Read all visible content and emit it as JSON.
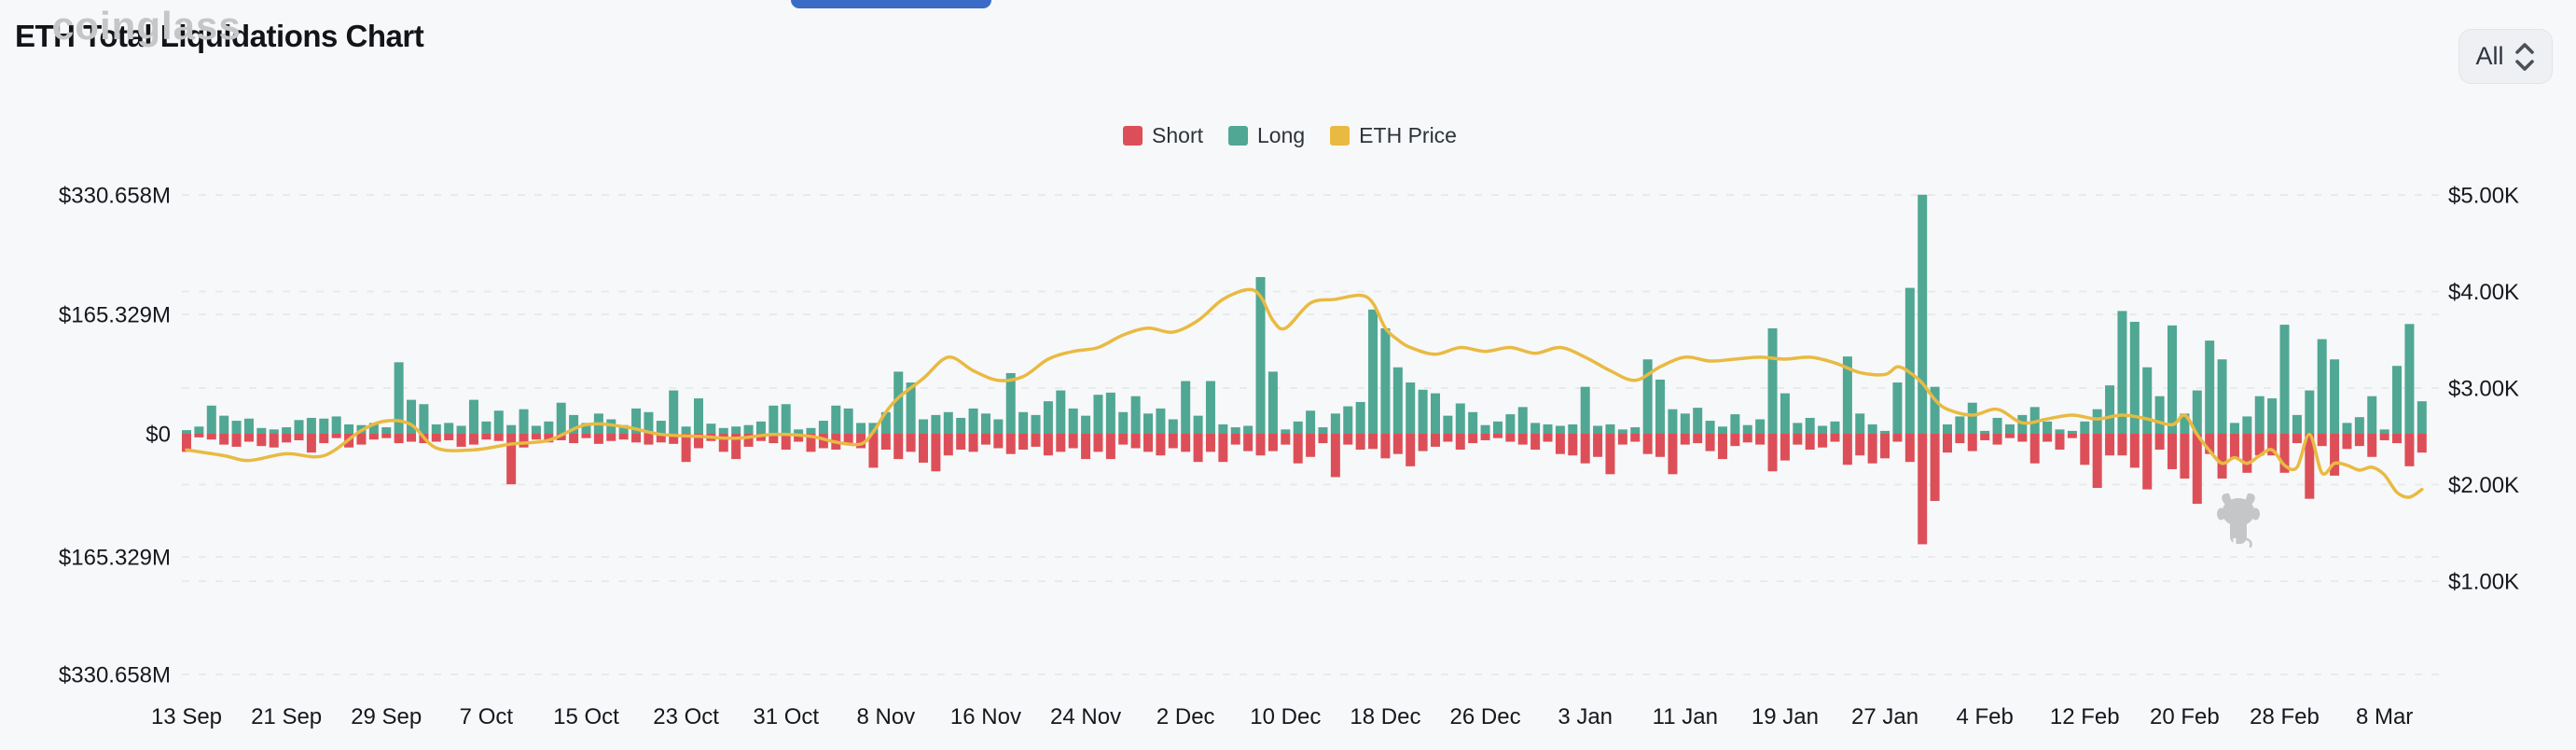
{
  "header": {
    "title": "ETH Total Liquidations Chart",
    "range_selector": {
      "selected": "All"
    },
    "partial_button_color": "#3a6cc7"
  },
  "legend": {
    "items": [
      {
        "label": "Short",
        "color": "#dd4f58"
      },
      {
        "label": "Long",
        "color": "#50a794"
      },
      {
        "label": "ETH Price",
        "color": "#e9ba42"
      }
    ]
  },
  "watermark": {
    "text": "coinglass",
    "color": "#c5c6c8"
  },
  "colors": {
    "background": "#f7f8f9",
    "grid": "#e9eaec",
    "axis_text": "#15181d",
    "short": "#dd4f58",
    "long": "#50a794",
    "price": "#e9ba42"
  },
  "chart_data": {
    "type": "bar+line",
    "title": "ETH Total Liquidations Chart",
    "grid": "dashed-horizontal",
    "legend_position": "top-center",
    "x_start_label": "13 Sep",
    "x_tick_interval_days": 8,
    "x_tick_labels": [
      "13 Sep",
      "21 Sep",
      "29 Sep",
      "7 Oct",
      "15 Oct",
      "23 Oct",
      "31 Oct",
      "8 Nov",
      "16 Nov",
      "24 Nov",
      "2 Dec",
      "10 Dec",
      "18 Dec",
      "26 Dec",
      "3 Jan",
      "11 Jan",
      "19 Jan",
      "27 Jan",
      "4 Feb",
      "12 Feb",
      "20 Feb",
      "28 Feb",
      "8 Mar"
    ],
    "left_axis": {
      "tick_labels": [
        "$330.658M",
        "$165.329M",
        "$0",
        "$165.329M",
        "$330.658M"
      ],
      "max_abs_musd": 330.658
    },
    "right_axis": {
      "tick_labels": [
        "$5.00K",
        "$4.00K",
        "$3.00K",
        "$2.00K",
        "$1.00K"
      ],
      "top_kusd": 5,
      "bottom_kusd": 1
    },
    "series": [
      {
        "name": "Long",
        "unit": "M USD (plotted up)",
        "values": [
          5,
          10,
          39,
          25,
          18,
          21,
          8,
          6,
          9,
          19,
          22,
          21,
          24,
          13,
          12,
          15,
          9,
          99,
          47,
          41,
          13,
          15,
          11,
          47,
          17,
          32,
          12,
          34,
          11,
          17,
          43,
          26,
          15,
          28,
          20,
          12,
          35,
          30,
          18,
          60,
          10,
          49,
          14,
          8,
          10,
          12,
          17,
          39,
          41,
          6,
          8,
          18,
          39,
          35,
          15,
          15,
          30,
          86,
          71,
          20,
          26,
          30,
          22,
          35,
          28,
          20,
          84,
          30,
          26,
          45,
          60,
          35,
          25,
          54,
          57,
          30,
          52,
          28,
          35,
          20,
          73,
          25,
          73,
          13,
          9,
          11,
          217,
          86,
          6,
          17,
          32,
          9,
          28,
          38,
          44,
          172,
          146,
          92,
          71,
          61,
          56,
          25,
          42,
          30,
          12,
          17,
          27,
          37,
          15,
          13,
          11,
          13,
          65,
          11,
          13,
          6,
          9,
          103,
          75,
          34,
          28,
          36,
          18,
          10,
          27,
          12,
          20,
          146,
          56,
          15,
          22,
          11,
          17,
          107,
          28,
          13,
          4,
          71,
          202,
          331,
          65,
          13,
          24,
          43,
          4,
          22,
          13,
          26,
          37,
          17,
          6,
          4,
          17,
          34,
          67,
          170,
          155,
          92,
          52,
          150,
          28,
          60,
          129,
          103,
          15,
          24,
          52,
          49,
          151,
          26,
          60,
          131,
          103,
          15,
          23,
          52,
          6,
          94,
          152,
          45
        ]
      },
      {
        "name": "Short",
        "unit": "M USD (plotted down)",
        "values": [
          25,
          5,
          8,
          15,
          18,
          11,
          17,
          19,
          12,
          9,
          26,
          13,
          6,
          19,
          15,
          8,
          6,
          13,
          11,
          13,
          11,
          9,
          18,
          15,
          8,
          10,
          70,
          19,
          8,
          12,
          9,
          13,
          6,
          14,
          10,
          8,
          12,
          15,
          12,
          14,
          39,
          20,
          10,
          25,
          35,
          18,
          10,
          13,
          22,
          11,
          25,
          20,
          22,
          14,
          20,
          47,
          22,
          35,
          25,
          40,
          52,
          30,
          22,
          25,
          15,
          20,
          28,
          22,
          18,
          30,
          25,
          20,
          35,
          25,
          35,
          15,
          20,
          25,
          30,
          20,
          25,
          39,
          25,
          39,
          15,
          24,
          30,
          24,
          15,
          41,
          32,
          13,
          60,
          15,
          22,
          21,
          34,
          28,
          45,
          24,
          18,
          11,
          22,
          13,
          9,
          6,
          11,
          15,
          22,
          11,
          28,
          30,
          41,
          32,
          56,
          15,
          11,
          28,
          32,
          56,
          15,
          13,
          24,
          35,
          17,
          12,
          15,
          52,
          37,
          15,
          22,
          19,
          11,
          43,
          30,
          41,
          34,
          11,
          39,
          153,
          93,
          26,
          13,
          24,
          9,
          15,
          6,
          11,
          41,
          11,
          22,
          6,
          43,
          75,
          30,
          30,
          47,
          77,
          22,
          49,
          62,
          97,
          28,
          62,
          34,
          54,
          30,
          30,
          54,
          13,
          90,
          17,
          58,
          21,
          17,
          32,
          9,
          13,
          45,
          26
        ]
      },
      {
        "name": "ETH Price",
        "unit": "K USD (right axis)",
        "anchor_points_day_price": [
          [
            0,
            2.36
          ],
          [
            3,
            2.3
          ],
          [
            5,
            2.25
          ],
          [
            8,
            2.32
          ],
          [
            11,
            2.3
          ],
          [
            14,
            2.56
          ],
          [
            16,
            2.66
          ],
          [
            18,
            2.62
          ],
          [
            20,
            2.38
          ],
          [
            23,
            2.36
          ],
          [
            26,
            2.42
          ],
          [
            29,
            2.46
          ],
          [
            32,
            2.62
          ],
          [
            35,
            2.6
          ],
          [
            38,
            2.52
          ],
          [
            41,
            2.5
          ],
          [
            44,
            2.48
          ],
          [
            47,
            2.52
          ],
          [
            50,
            2.5
          ],
          [
            52,
            2.44
          ],
          [
            54,
            2.42
          ],
          [
            55,
            2.55
          ],
          [
            56,
            2.75
          ],
          [
            57,
            2.9
          ],
          [
            59,
            3.1
          ],
          [
            61,
            3.32
          ],
          [
            63,
            3.18
          ],
          [
            65,
            3.08
          ],
          [
            67,
            3.12
          ],
          [
            69,
            3.3
          ],
          [
            71,
            3.38
          ],
          [
            73,
            3.42
          ],
          [
            75,
            3.55
          ],
          [
            77,
            3.62
          ],
          [
            79,
            3.58
          ],
          [
            81,
            3.7
          ],
          [
            83,
            3.92
          ],
          [
            85,
            4.02
          ],
          [
            86,
            3.95
          ],
          [
            87,
            3.7
          ],
          [
            88,
            3.62
          ],
          [
            90,
            3.88
          ],
          [
            92,
            3.92
          ],
          [
            94,
            3.96
          ],
          [
            95,
            3.88
          ],
          [
            96,
            3.62
          ],
          [
            97,
            3.5
          ],
          [
            98,
            3.42
          ],
          [
            100,
            3.35
          ],
          [
            102,
            3.42
          ],
          [
            104,
            3.38
          ],
          [
            106,
            3.42
          ],
          [
            108,
            3.36
          ],
          [
            110,
            3.42
          ],
          [
            112,
            3.32
          ],
          [
            114,
            3.18
          ],
          [
            116,
            3.08
          ],
          [
            118,
            3.22
          ],
          [
            120,
            3.32
          ],
          [
            122,
            3.28
          ],
          [
            124,
            3.3
          ],
          [
            126,
            3.32
          ],
          [
            128,
            3.3
          ],
          [
            130,
            3.32
          ],
          [
            132,
            3.26
          ],
          [
            134,
            3.16
          ],
          [
            136,
            3.14
          ],
          [
            137,
            3.22
          ],
          [
            138,
            3.16
          ],
          [
            139,
            3.05
          ],
          [
            140,
            2.88
          ],
          [
            141,
            2.78
          ],
          [
            143,
            2.72
          ],
          [
            145,
            2.78
          ],
          [
            147,
            2.64
          ],
          [
            149,
            2.68
          ],
          [
            151,
            2.72
          ],
          [
            153,
            2.68
          ],
          [
            155,
            2.72
          ],
          [
            157,
            2.68
          ],
          [
            159,
            2.62
          ],
          [
            160,
            2.72
          ],
          [
            161,
            2.52
          ],
          [
            162,
            2.35
          ],
          [
            163,
            2.22
          ],
          [
            164,
            2.28
          ],
          [
            165,
            2.22
          ],
          [
            166,
            2.3
          ],
          [
            167,
            2.36
          ],
          [
            168,
            2.2
          ],
          [
            169,
            2.18
          ],
          [
            170,
            2.52
          ],
          [
            171,
            2.12
          ],
          [
            172,
            2.22
          ],
          [
            173,
            2.2
          ],
          [
            174,
            2.15
          ],
          [
            175,
            2.18
          ],
          [
            176,
            2.1
          ],
          [
            177,
            1.92
          ],
          [
            178,
            1.87
          ],
          [
            179,
            1.95
          ]
        ]
      }
    ]
  }
}
